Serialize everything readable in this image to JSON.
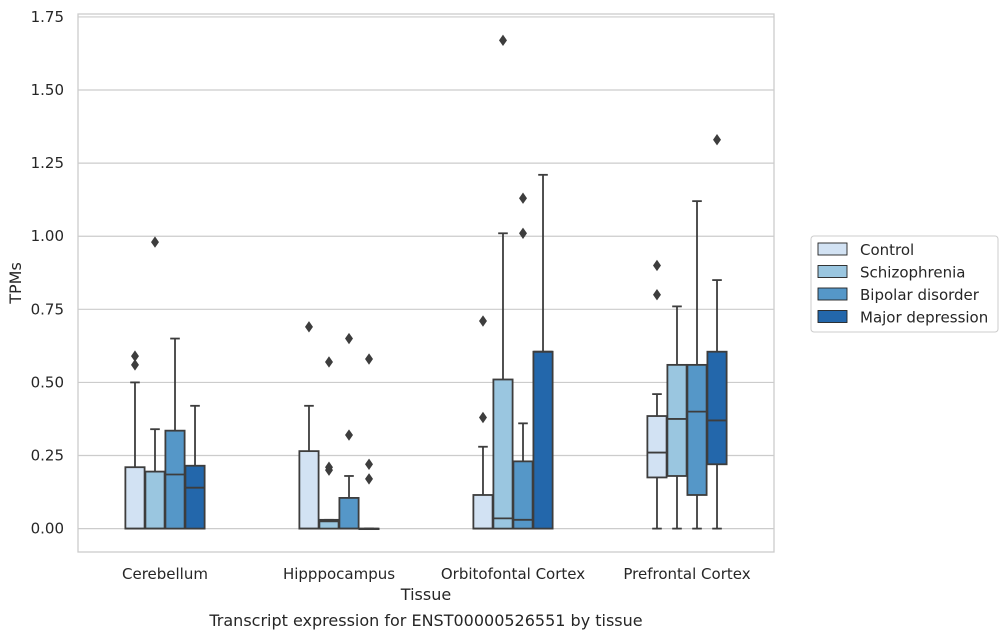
{
  "chart_data": {
    "type": "box",
    "xlabel": "Tissue",
    "ylabel": "TPMs",
    "caption": "Transcript expression for ENST00000526551 by tissue",
    "ylim": [
      -0.08,
      1.76
    ],
    "yticks": [
      "0.00",
      "0.25",
      "0.50",
      "0.75",
      "1.00",
      "1.25",
      "1.50",
      "1.75"
    ],
    "grid": "horizontal",
    "legend_position": "right",
    "categories": [
      "Cerebellum",
      "Hipppocampus",
      "Orbitofontal Cortex",
      "Prefrontal Cortex"
    ],
    "series": [
      {
        "name": "Control",
        "color": "#d2e2f3",
        "boxes": [
          {
            "q1": 0,
            "median": 0,
            "q3": 0.21,
            "whisker_low": 0,
            "whisker_high": 0.5,
            "outliers": [
              0.56,
              0.59
            ]
          },
          {
            "q1": 0,
            "median": 0,
            "q3": 0.265,
            "whisker_low": 0,
            "whisker_high": 0.42,
            "outliers": [
              0.69
            ]
          },
          {
            "q1": 0,
            "median": 0,
            "q3": 0.115,
            "whisker_low": 0,
            "whisker_high": 0.28,
            "outliers": [
              0.38,
              0.71
            ]
          },
          {
            "q1": 0.175,
            "median": 0.26,
            "q3": 0.385,
            "whisker_low": 0,
            "whisker_high": 0.46,
            "outliers": [
              0.8,
              0.9
            ]
          }
        ]
      },
      {
        "name": "Schizophrenia",
        "color": "#9ac6e0",
        "boxes": [
          {
            "q1": 0,
            "median": 0,
            "q3": 0.195,
            "whisker_low": 0,
            "whisker_high": 0.34,
            "outliers": [
              0.98
            ]
          },
          {
            "q1": 0,
            "median": 0.025,
            "q3": 0.03,
            "whisker_low": 0,
            "whisker_high": 0.03,
            "outliers": [
              0.2,
              0.21,
              0.57
            ]
          },
          {
            "q1": 0,
            "median": 0.035,
            "q3": 0.51,
            "whisker_low": 0,
            "whisker_high": 1.01,
            "outliers": [
              1.67
            ]
          },
          {
            "q1": 0.18,
            "median": 0.375,
            "q3": 0.56,
            "whisker_low": 0,
            "whisker_high": 0.76,
            "outliers": []
          }
        ]
      },
      {
        "name": "Bipolar disorder",
        "color": "#5597c8",
        "boxes": [
          {
            "q1": 0,
            "median": 0.185,
            "q3": 0.335,
            "whisker_low": 0,
            "whisker_high": 0.65,
            "outliers": []
          },
          {
            "q1": 0,
            "median": 0,
            "q3": 0.105,
            "whisker_low": 0,
            "whisker_high": 0.18,
            "outliers": [
              0.32,
              0.65
            ]
          },
          {
            "q1": 0,
            "median": 0.03,
            "q3": 0.23,
            "whisker_low": 0,
            "whisker_high": 0.36,
            "outliers": [
              1.01,
              1.13
            ]
          },
          {
            "q1": 0.115,
            "median": 0.4,
            "q3": 0.56,
            "whisker_low": 0,
            "whisker_high": 1.12,
            "outliers": []
          }
        ]
      },
      {
        "name": "Major depression",
        "color": "#2367ab",
        "boxes": [
          {
            "q1": 0,
            "median": 0.14,
            "q3": 0.215,
            "whisker_low": 0,
            "whisker_high": 0.42,
            "outliers": []
          },
          {
            "q1": 0,
            "median": 0,
            "q3": 0,
            "whisker_low": 0,
            "whisker_high": 0,
            "outliers": [
              0.17,
              0.22,
              0.58
            ]
          },
          {
            "q1": 0,
            "median": 0.605,
            "q3": 0.605,
            "whisker_low": 0,
            "whisker_high": 1.21,
            "outliers": []
          },
          {
            "q1": 0.22,
            "median": 0.37,
            "q3": 0.605,
            "whisker_low": 0,
            "whisker_high": 0.85,
            "outliers": [
              1.33
            ]
          }
        ]
      }
    ]
  }
}
